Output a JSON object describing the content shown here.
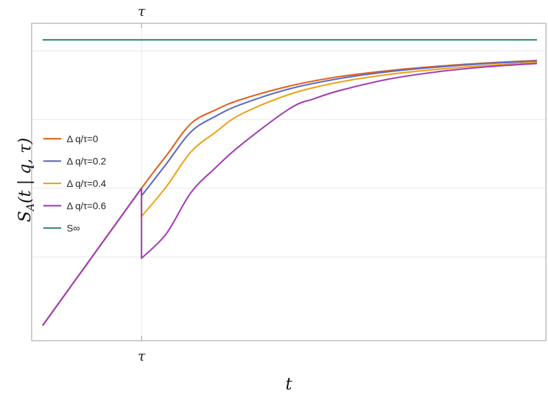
{
  "chart_data": {
    "type": "line",
    "title": "",
    "xlabel": "t",
    "ylabel": "S_A(t | q, τ)",
    "xlim": [
      -1,
      4
    ],
    "ylim": [
      -0.05,
      1.1
    ],
    "grid": true,
    "legend_position": "left-middle",
    "x_ticks": [
      {
        "value": 0,
        "label": "τ"
      }
    ],
    "top_ticks": [
      {
        "value": 0,
        "label": "τ"
      }
    ],
    "S_inf": 1.04,
    "series": [
      {
        "name": "Δ q/τ=0",
        "color": "#E0621E",
        "x": [
          -1,
          -0.5,
          0,
          0.25,
          0.5,
          0.75,
          1,
          1.5,
          2,
          2.5,
          3,
          3.5,
          4
        ],
        "y": [
          0,
          0.25,
          0.5,
          0.618,
          0.735,
          0.785,
          0.822,
          0.872,
          0.906,
          0.928,
          0.944,
          0.956,
          0.965
        ]
      },
      {
        "name": "Δ q/τ=0.2",
        "color": "#5E6CC0",
        "x": [
          -1,
          -0.5,
          0,
          0,
          0.25,
          0.5,
          0.75,
          1,
          1.5,
          2,
          2.5,
          3,
          3.5,
          4
        ],
        "y": [
          0,
          0.25,
          0.5,
          0.472,
          0.588,
          0.705,
          0.762,
          0.804,
          0.862,
          0.899,
          0.924,
          0.941,
          0.954,
          0.963
        ]
      },
      {
        "name": "Δ q/τ=0.4",
        "color": "#EFA21B",
        "x": [
          -1,
          -0.5,
          0,
          0,
          0.25,
          0.5,
          0.75,
          1,
          1.5,
          2,
          2.5,
          3,
          3.5,
          4
        ],
        "y": [
          0,
          0.25,
          0.5,
          0.397,
          0.505,
          0.632,
          0.704,
          0.768,
          0.842,
          0.886,
          0.914,
          0.933,
          0.947,
          0.958
        ]
      },
      {
        "name": "Δ q/τ=0.6",
        "color": "#A43EB6",
        "x": [
          -1,
          -0.5,
          0,
          0,
          0.25,
          0.5,
          0.75,
          1,
          1.5,
          1.75,
          2,
          2.5,
          3,
          3.5,
          4
        ],
        "y": [
          0,
          0.25,
          0.5,
          0.245,
          0.334,
          0.484,
          0.575,
          0.656,
          0.79,
          0.826,
          0.855,
          0.897,
          0.924,
          0.942,
          0.954
        ]
      }
    ],
    "legend": [
      {
        "name": "Δ q/τ=0",
        "color": "#E0621E"
      },
      {
        "name": "Δ q/τ=0.2",
        "color": "#5E6CC0"
      },
      {
        "name": "Δ q/τ=0.4",
        "color": "#EFA21B"
      },
      {
        "name": "Δ q/τ=0.6",
        "color": "#A43EB6"
      },
      {
        "name": "S∞",
        "color": "#3A8A6E"
      }
    ]
  }
}
